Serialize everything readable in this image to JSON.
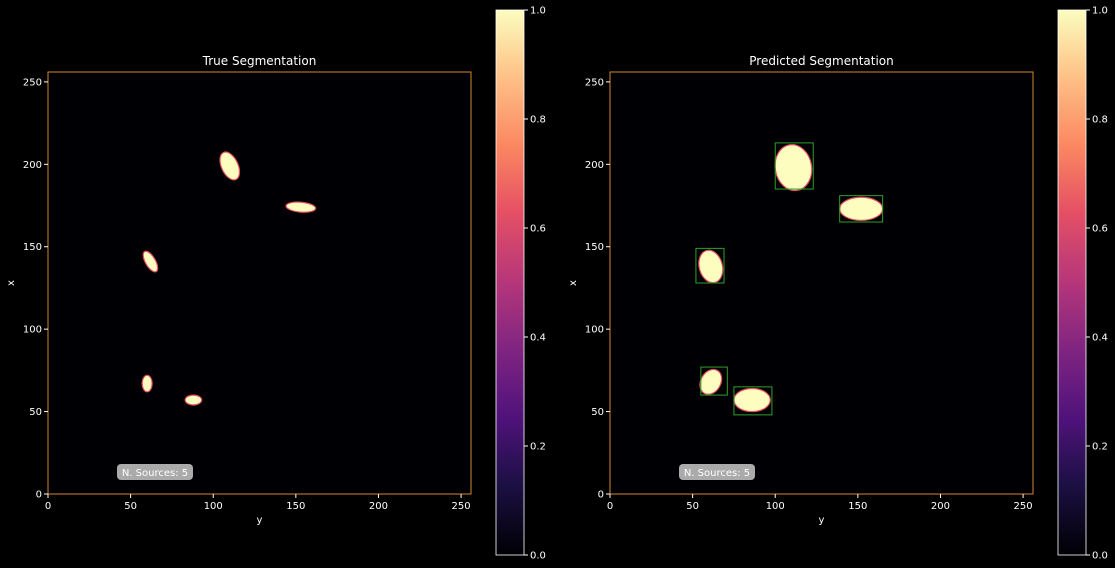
{
  "chart_data": [
    {
      "type": "heatmap",
      "title": "True Segmentation",
      "xlabel": "y",
      "ylabel": "x",
      "xlim": [
        0,
        256
      ],
      "ylim": [
        0,
        256
      ],
      "xticks": [
        0,
        50,
        100,
        150,
        200,
        250
      ],
      "yticks": [
        0,
        50,
        100,
        150,
        200,
        250
      ],
      "colormap": "magma",
      "frame_color": "#d4862e",
      "annotation": "N. Sources: 5",
      "colorbar": {
        "range": [
          0,
          1
        ],
        "ticks": [
          "0.0",
          "0.2",
          "0.4",
          "0.6",
          "0.8",
          "1.0"
        ]
      },
      "sources": [
        {
          "y": 110,
          "x": 199,
          "ry": 5,
          "rx": 9,
          "angle": -25
        },
        {
          "y": 153,
          "x": 174,
          "ry": 9,
          "rx": 3,
          "angle": 5
        },
        {
          "y": 62,
          "x": 141,
          "ry": 3,
          "rx": 7,
          "angle": -30
        },
        {
          "y": 60,
          "x": 67,
          "ry": 3,
          "rx": 5,
          "angle": 0
        },
        {
          "y": 88,
          "x": 57,
          "ry": 5,
          "rx": 3,
          "angle": 0
        }
      ],
      "boxes": []
    },
    {
      "type": "heatmap",
      "title": "Predicted Segmentation",
      "xlabel": "y",
      "ylabel": "x",
      "xlim": [
        0,
        256
      ],
      "ylim": [
        0,
        256
      ],
      "xticks": [
        0,
        50,
        100,
        150,
        200,
        250
      ],
      "yticks": [
        0,
        50,
        100,
        150,
        200,
        250
      ],
      "colormap": "magma",
      "frame_color": "#d4862e",
      "annotation": "N. Sources: 5",
      "colorbar": {
        "range": [
          0,
          1
        ],
        "ticks": [
          "0.0",
          "0.2",
          "0.4",
          "0.6",
          "0.8",
          "1.0"
        ]
      },
      "sources": [
        {
          "y": 111,
          "x": 198,
          "ry": 11,
          "rx": 14,
          "angle": -10
        },
        {
          "y": 152,
          "x": 173,
          "ry": 13,
          "rx": 7,
          "angle": 0
        },
        {
          "y": 61,
          "x": 138,
          "ry": 7,
          "rx": 10,
          "angle": -15
        },
        {
          "y": 61,
          "x": 68,
          "ry": 6,
          "rx": 8,
          "angle": 30
        },
        {
          "y": 86,
          "x": 57,
          "ry": 11,
          "rx": 7,
          "angle": 0
        }
      ],
      "boxes": [
        {
          "y0": 100,
          "y1": 123,
          "x0": 185,
          "x1": 213
        },
        {
          "y0": 139,
          "y1": 165,
          "x0": 165,
          "x1": 181
        },
        {
          "y0": 52,
          "y1": 69,
          "x0": 128,
          "x1": 149
        },
        {
          "y0": 55,
          "y1": 71,
          "x0": 60,
          "x1": 77
        },
        {
          "y0": 75,
          "y1": 98,
          "x0": 48,
          "x1": 65
        }
      ]
    }
  ]
}
